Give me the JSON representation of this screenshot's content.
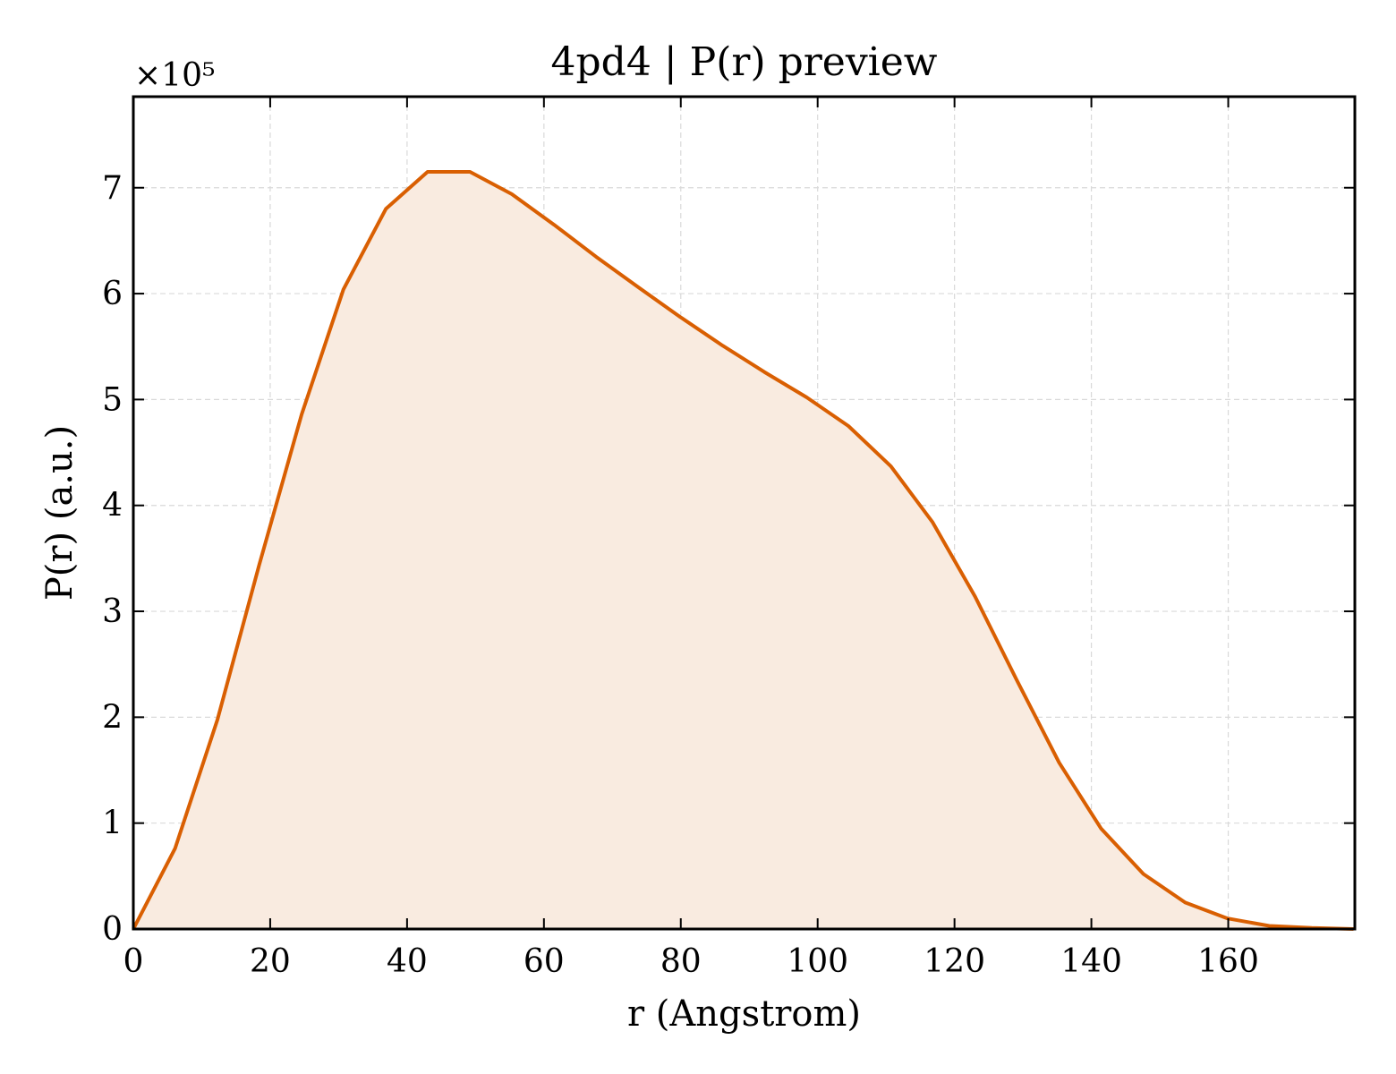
{
  "chart_data": {
    "type": "area",
    "title": "4pd4 | P(r) preview",
    "xlabel": "r (Angstrom)",
    "ylabel": "P(r) (a.u.)",
    "y_multiplier": "×10⁵",
    "xlim": [
      0,
      178.5
    ],
    "ylim": [
      0,
      7.86
    ],
    "xticks": [
      0,
      20,
      40,
      60,
      80,
      100,
      120,
      140,
      160
    ],
    "yticks": [
      0,
      1,
      2,
      3,
      4,
      5,
      6,
      7
    ],
    "grid": true,
    "line_color": "#d95f02",
    "fill_color": "#f9ebe0",
    "series": [
      {
        "x": [
          0,
          6.1,
          12.3,
          18.4,
          24.6,
          30.7,
          36.9,
          43.0,
          49.2,
          55.3,
          61.5,
          67.6,
          73.8,
          79.9,
          86.1,
          92.2,
          98.4,
          104.5,
          110.7,
          116.8,
          123.0,
          129.1,
          135.3,
          141.4,
          147.6,
          153.7,
          159.9,
          166.0,
          172.2,
          178.3
        ],
        "y": [
          0,
          0.76,
          1.98,
          3.44,
          4.86,
          6.04,
          6.8,
          7.15,
          7.15,
          6.94,
          6.65,
          6.35,
          6.06,
          5.78,
          5.51,
          5.26,
          5.02,
          4.75,
          4.37,
          3.84,
          3.14,
          2.35,
          1.57,
          0.95,
          0.52,
          0.25,
          0.1,
          0.03,
          0.01,
          0
        ]
      }
    ]
  }
}
